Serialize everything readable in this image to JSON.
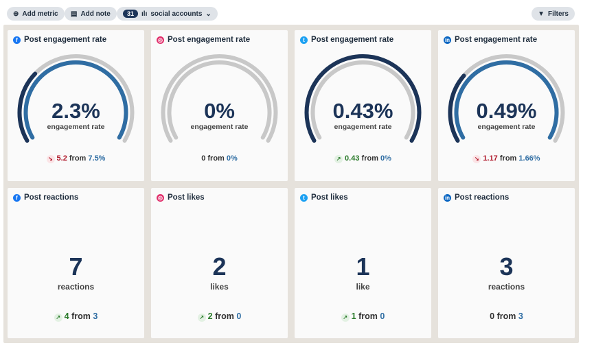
{
  "toolbar": {
    "add_metric": "Add metric",
    "add_note": "Add note",
    "accounts_count": "31",
    "accounts_label": "social accounts",
    "filters": "Filters"
  },
  "colors": {
    "current": "#1c3458",
    "previous": "#2f6da3",
    "track": "#c8c8c8",
    "down": "#b0182a",
    "up": "#2a7a2a",
    "facebook": "#1877f2",
    "instagram": "#e1306c",
    "twitter": "#1da1f2",
    "linkedin": "#0a66c2"
  },
  "gauges": [
    {
      "network": "facebook",
      "title": "Post engagement rate",
      "value": "2.3%",
      "unit": "engagement rate",
      "change": "5.2",
      "direction": "down",
      "from_label": "from",
      "previous": "7.5%",
      "current_num": 2.3,
      "previous_num": 7.5
    },
    {
      "network": "instagram",
      "title": "Post engagement rate",
      "value": "0%",
      "unit": "engagement rate",
      "change": "0",
      "direction": "none",
      "from_label": "from",
      "previous": "0%",
      "current_num": 0,
      "previous_num": 0
    },
    {
      "network": "twitter",
      "title": "Post engagement rate",
      "value": "0.43%",
      "unit": "engagement rate",
      "change": "0.43",
      "direction": "up",
      "from_label": "from",
      "previous": "0%",
      "current_num": 0.43,
      "previous_num": 0
    },
    {
      "network": "linkedin",
      "title": "Post engagement rate",
      "value": "0.49%",
      "unit": "engagement rate",
      "change": "1.17",
      "direction": "down",
      "from_label": "from",
      "previous": "1.66%",
      "current_num": 0.49,
      "previous_num": 1.66
    }
  ],
  "counts": [
    {
      "network": "facebook",
      "title": "Post reactions",
      "value": "7",
      "unit": "reactions",
      "change": "4",
      "direction": "up",
      "from_label": "from",
      "previous": "3"
    },
    {
      "network": "instagram",
      "title": "Post likes",
      "value": "2",
      "unit": "likes",
      "change": "2",
      "direction": "up",
      "from_label": "from",
      "previous": "0"
    },
    {
      "network": "twitter",
      "title": "Post likes",
      "value": "1",
      "unit": "like",
      "change": "1",
      "direction": "up",
      "from_label": "from",
      "previous": "0"
    },
    {
      "network": "linkedin",
      "title": "Post reactions",
      "value": "3",
      "unit": "reactions",
      "change": "0",
      "direction": "none",
      "from_label": "from",
      "previous": "3"
    }
  ]
}
